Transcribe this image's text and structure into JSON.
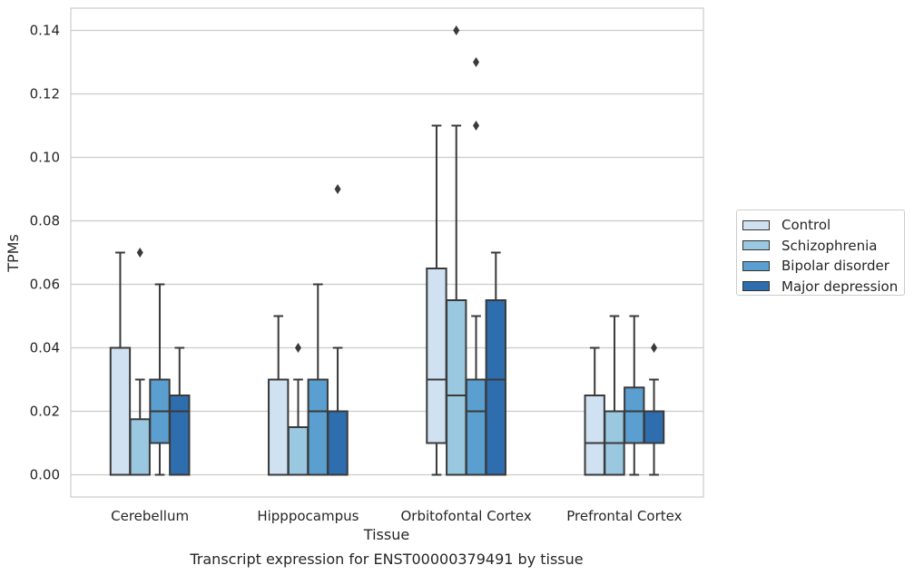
{
  "chart_data": {
    "type": "box",
    "title": "Transcript expression for ENST00000379491 by tissue",
    "xlabel": "Tissue",
    "ylabel": "TPMs",
    "ylim": [
      -0.007,
      0.147
    ],
    "yticks": [
      "0.00",
      "0.02",
      "0.04",
      "0.06",
      "0.08",
      "0.10",
      "0.12",
      "0.14"
    ],
    "ytick_values": [
      0,
      0.02,
      0.04,
      0.06,
      0.08,
      0.1,
      0.12,
      0.14
    ],
    "grid": true,
    "legend_position": "right",
    "categories": [
      "Cerebellum",
      "Hipppocampus",
      "Orbitofontal Cortex",
      "Prefrontal Cortex"
    ],
    "series": [
      {
        "name": "Control",
        "color": "#d0e1f2",
        "boxes": [
          {
            "min": 0,
            "q1": 0,
            "median": 0,
            "q3": 0.04,
            "max": 0.07,
            "outliers": []
          },
          {
            "min": 0,
            "q1": 0,
            "median": 0,
            "q3": 0.03,
            "max": 0.05,
            "outliers": []
          },
          {
            "min": 0,
            "q1": 0.01,
            "median": 0.03,
            "q3": 0.065,
            "max": 0.11,
            "outliers": []
          },
          {
            "min": 0,
            "q1": 0,
            "median": 0.01,
            "q3": 0.025,
            "max": 0.04,
            "outliers": []
          }
        ]
      },
      {
        "name": "Schizophrenia",
        "color": "#9ac8e0",
        "boxes": [
          {
            "min": 0,
            "q1": 0,
            "median": 0,
            "q3": 0.0175,
            "max": 0.03,
            "outliers": [
              0.07
            ]
          },
          {
            "min": 0,
            "q1": 0,
            "median": 0,
            "q3": 0.015,
            "max": 0.03,
            "outliers": [
              0.04
            ]
          },
          {
            "min": 0,
            "q1": 0,
            "median": 0.025,
            "q3": 0.055,
            "max": 0.11,
            "outliers": [
              0.14
            ]
          },
          {
            "min": 0,
            "q1": 0,
            "median": 0.01,
            "q3": 0.02,
            "max": 0.05,
            "outliers": []
          }
        ]
      },
      {
        "name": "Bipolar disorder",
        "color": "#5a9fcf",
        "boxes": [
          {
            "min": 0,
            "q1": 0.01,
            "median": 0.02,
            "q3": 0.03,
            "max": 0.06,
            "outliers": []
          },
          {
            "min": 0,
            "q1": 0,
            "median": 0.02,
            "q3": 0.03,
            "max": 0.06,
            "outliers": []
          },
          {
            "min": 0,
            "q1": 0,
            "median": 0.02,
            "q3": 0.03,
            "max": 0.05,
            "outliers": [
              0.11,
              0.13
            ]
          },
          {
            "min": 0,
            "q1": 0.01,
            "median": 0.02,
            "q3": 0.0275,
            "max": 0.05,
            "outliers": []
          }
        ]
      },
      {
        "name": "Major depression",
        "color": "#2e6dae",
        "boxes": [
          {
            "min": 0,
            "q1": 0,
            "median": 0.02,
            "q3": 0.025,
            "max": 0.04,
            "outliers": []
          },
          {
            "min": 0,
            "q1": 0,
            "median": 0.02,
            "q3": 0.02,
            "max": 0.04,
            "outliers": [
              0.09
            ]
          },
          {
            "min": 0,
            "q1": 0,
            "median": 0.03,
            "q3": 0.055,
            "max": 0.07,
            "outliers": []
          },
          {
            "min": 0,
            "q1": 0.01,
            "median": 0.02,
            "q3": 0.02,
            "max": 0.03,
            "outliers": [
              0.04
            ]
          }
        ]
      }
    ]
  }
}
